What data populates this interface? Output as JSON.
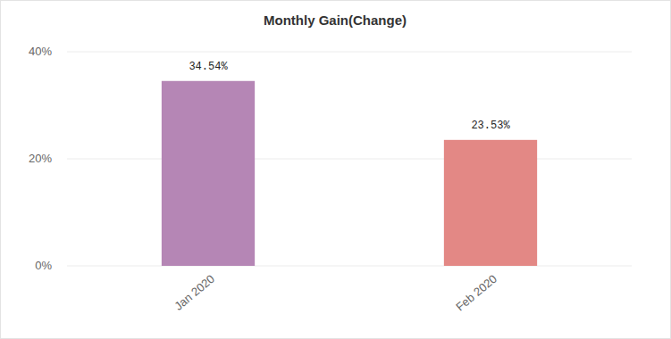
{
  "chart_data": {
    "type": "bar",
    "title": "Monthly Gain(Change)",
    "categories": [
      "Jan 2020",
      "Feb 2020"
    ],
    "values": [
      34.54,
      23.53
    ],
    "value_labels": [
      "34.54%",
      "23.53%"
    ],
    "colors": [
      "#b586b5",
      "#e38885"
    ],
    "ylim": [
      0,
      40
    ],
    "yticks": [
      {
        "value": 0,
        "label": "0%"
      },
      {
        "value": 20,
        "label": "20%"
      },
      {
        "value": 40,
        "label": "40%"
      }
    ],
    "grid": true,
    "data_labels": true
  }
}
